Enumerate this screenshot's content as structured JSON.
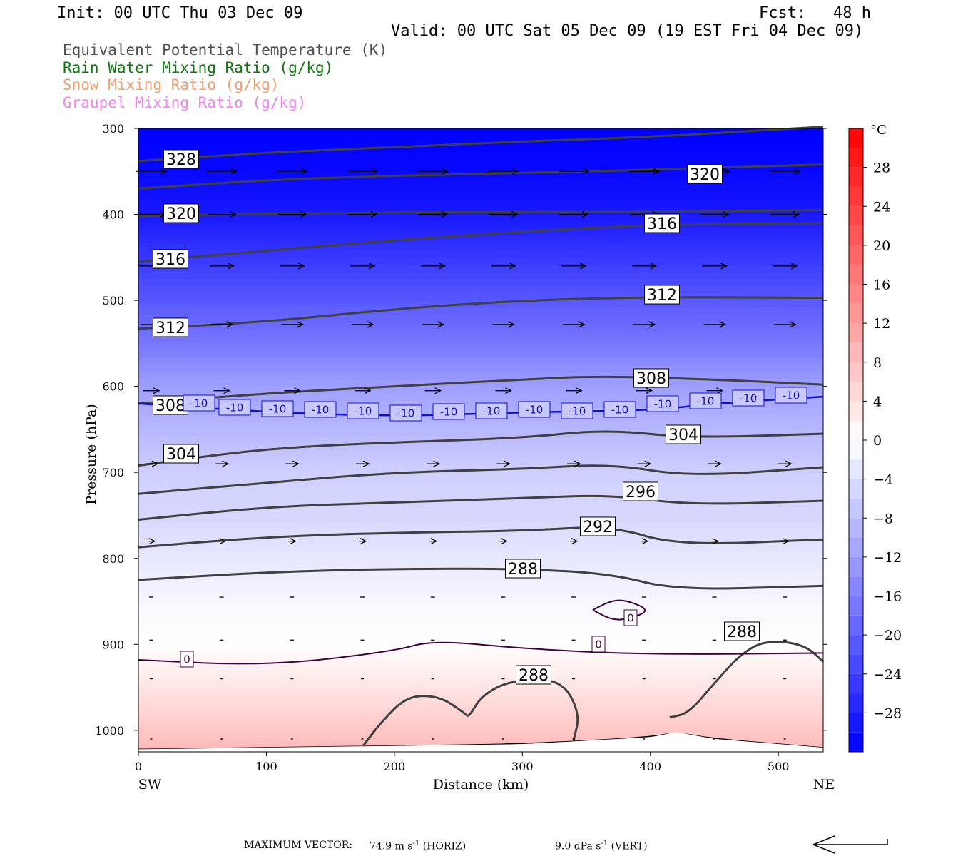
{
  "header": {
    "init": "Init: 00 UTC Thu 03 Dec 09",
    "fcst_label": "Fcst:",
    "fcst_value": "48 h",
    "valid": "Valid: 00 UTC Sat 05 Dec 09 (19 EST Fri 04 Dec 09)"
  },
  "fields": [
    {
      "text": "Equivalent Potential Temperature (K)",
      "color": "#505050"
    },
    {
      "text": "Rain Water Mixing Ratio (g/kg)",
      "color": "#0a7a0a"
    },
    {
      "text": "Snow Mixing Ratio (g/kg)",
      "color": "#f0a070"
    },
    {
      "text": "Graupel Mixing Ratio (g/kg)",
      "color": "#ee82ee"
    }
  ],
  "footer": {
    "max_vector_label": "MAXIMUM VECTOR:",
    "horiz_value": "74.9 m s",
    "horiz_exp": "-1",
    "horiz_tag": "(HORIZ)",
    "vert_value": "9.0 dPa s",
    "vert_exp": "-1",
    "vert_tag": "(VERT)"
  },
  "chart_data": {
    "type": "cross-section",
    "xlabel": "Distance (km)",
    "ylabel": "Pressure (hPa)",
    "xlim": [
      0,
      535
    ],
    "ylim": [
      1025,
      300
    ],
    "y_scale": "linear",
    "x_ticks": [
      0,
      100,
      200,
      300,
      400,
      500
    ],
    "y_ticks": [
      300,
      400,
      500,
      600,
      700,
      800,
      900,
      1000
    ],
    "x_end_labels": {
      "left": "SW",
      "right": "NE"
    },
    "colorbar": {
      "unit": "°C",
      "levels": [
        -32,
        -30,
        -28,
        -26,
        -24,
        -22,
        -20,
        -18,
        -16,
        -14,
        -12,
        -10,
        -8,
        -6,
        -4,
        -2,
        0,
        2,
        4,
        6,
        8,
        10,
        12,
        14,
        16,
        18,
        20,
        22,
        24,
        26,
        28,
        30,
        32
      ],
      "tick_labels": [
        28,
        24,
        20,
        16,
        12,
        8,
        4,
        0,
        -4,
        -8,
        -12,
        -16,
        -20,
        -24,
        -28
      ]
    },
    "temperature_bands": [
      {
        "p": 300,
        "t": -32
      },
      {
        "p": 350,
        "t": -31
      },
      {
        "p": 400,
        "t": -29
      },
      {
        "p": 450,
        "t": -25
      },
      {
        "p": 500,
        "t": -21
      },
      {
        "p": 550,
        "t": -17
      },
      {
        "p": 600,
        "t": -12
      },
      {
        "p": 650,
        "t": -9
      },
      {
        "p": 700,
        "t": -6
      },
      {
        "p": 750,
        "t": -5
      },
      {
        "p": 800,
        "t": -3
      },
      {
        "p": 850,
        "t": -1
      },
      {
        "p": 900,
        "t": 0
      },
      {
        "p": 930,
        "t": 2
      },
      {
        "p": 960,
        "t": 4
      },
      {
        "p": 1000,
        "t": 7
      },
      {
        "p": 1025,
        "t": 9
      }
    ],
    "theta_e_contours": [
      {
        "label": "328",
        "points": [
          [
            0,
            338
          ],
          [
            100,
            328
          ],
          [
            200,
            322
          ],
          [
            300,
            315
          ],
          [
            400,
            310
          ],
          [
            535,
            298
          ]
        ]
      },
      {
        "label": "320",
        "points": [
          [
            0,
            370
          ],
          [
            100,
            360
          ],
          [
            200,
            355
          ],
          [
            300,
            352
          ],
          [
            400,
            348
          ],
          [
            535,
            342
          ]
        ]
      },
      {
        "label": "320",
        "points": [
          [
            0,
            402
          ],
          [
            100,
            399
          ],
          [
            200,
            398
          ],
          [
            300,
            397
          ],
          [
            400,
            397
          ],
          [
            535,
            395
          ]
        ]
      },
      {
        "label": "316",
        "points": [
          [
            0,
            455
          ],
          [
            100,
            442
          ],
          [
            200,
            430
          ],
          [
            300,
            420
          ],
          [
            400,
            412
          ],
          [
            535,
            410
          ]
        ]
      },
      {
        "label": "312",
        "points": [
          [
            0,
            533
          ],
          [
            100,
            525
          ],
          [
            200,
            510
          ],
          [
            300,
            500
          ],
          [
            400,
            496
          ],
          [
            535,
            497
          ]
        ]
      },
      {
        "label": "308",
        "points": [
          [
            0,
            620
          ],
          [
            100,
            608
          ],
          [
            200,
            600
          ],
          [
            300,
            592
          ],
          [
            360,
            588
          ],
          [
            450,
            592
          ],
          [
            535,
            598
          ]
        ]
      },
      {
        "label": "304",
        "points": [
          [
            0,
            692
          ],
          [
            100,
            672
          ],
          [
            200,
            665
          ],
          [
            300,
            660
          ],
          [
            365,
            650
          ],
          [
            430,
            660
          ],
          [
            535,
            655
          ]
        ]
      },
      {
        "label": "",
        "points": [
          [
            0,
            725
          ],
          [
            100,
            712
          ],
          [
            200,
            700
          ],
          [
            300,
            696
          ],
          [
            370,
            690
          ],
          [
            430,
            705
          ],
          [
            535,
            694
          ]
        ]
      },
      {
        "label": "296",
        "points": [
          [
            0,
            755
          ],
          [
            100,
            740
          ],
          [
            200,
            735
          ],
          [
            300,
            730
          ],
          [
            370,
            726
          ],
          [
            430,
            738
          ],
          [
            535,
            733
          ]
        ]
      },
      {
        "label": "292",
        "points": [
          [
            0,
            787
          ],
          [
            100,
            775
          ],
          [
            200,
            770
          ],
          [
            300,
            768
          ],
          [
            370,
            762
          ],
          [
            420,
            785
          ],
          [
            535,
            778
          ]
        ]
      },
      {
        "label": "288",
        "points": [
          [
            0,
            825
          ],
          [
            100,
            816
          ],
          [
            200,
            812
          ],
          [
            300,
            812
          ],
          [
            370,
            818
          ],
          [
            420,
            837
          ],
          [
            535,
            832
          ]
        ]
      }
    ],
    "theta_e_288_low": [
      {
        "label": "288",
        "points": [
          [
            176,
            1017
          ],
          [
            190,
            990
          ],
          [
            210,
            960
          ],
          [
            235,
            960
          ],
          [
            255,
            980
          ],
          [
            258,
            985
          ],
          [
            268,
            960
          ],
          [
            290,
            942
          ],
          [
            330,
            940
          ],
          [
            345,
            980
          ],
          [
            340,
            1012
          ]
        ]
      },
      {
        "label": "288",
        "points": [
          [
            415,
            985
          ],
          [
            430,
            980
          ],
          [
            450,
            945
          ],
          [
            470,
            912
          ],
          [
            490,
            895
          ],
          [
            520,
            900
          ],
          [
            535,
            920
          ]
        ]
      }
    ],
    "isotherm_minus10": {
      "label": "-10",
      "points": [
        [
          0,
          620
        ],
        [
          100,
          630
        ],
        [
          200,
          635
        ],
        [
          300,
          630
        ],
        [
          400,
          628
        ],
        [
          450,
          620
        ],
        [
          535,
          612
        ]
      ]
    },
    "isotherm_zero": {
      "label": "0",
      "points": [
        [
          0,
          918
        ],
        [
          100,
          925
        ],
        [
          200,
          908
        ],
        [
          230,
          895
        ],
        [
          300,
          905
        ],
        [
          400,
          912
        ],
        [
          535,
          910
        ]
      ],
      "closed_loop": [
        [
          355,
          860
        ],
        [
          368,
          850
        ],
        [
          380,
          848
        ],
        [
          400,
          860
        ],
        [
          385,
          870
        ],
        [
          370,
          872
        ],
        [
          355,
          860
        ]
      ]
    },
    "surface": {
      "points": [
        [
          0,
          1022
        ],
        [
          100,
          1020
        ],
        [
          200,
          1018
        ],
        [
          300,
          1016
        ],
        [
          400,
          1008
        ],
        [
          420,
          1002
        ],
        [
          450,
          1010
        ],
        [
          535,
          1020
        ]
      ]
    },
    "wind_rows": [
      {
        "p": 350,
        "len": 42
      },
      {
        "p": 400,
        "len": 40
      },
      {
        "p": 460,
        "len": 34
      },
      {
        "p": 528,
        "len": 30
      },
      {
        "p": 605,
        "len": 22
      },
      {
        "p": 690,
        "len": 18
      },
      {
        "p": 780,
        "len": 10
      },
      {
        "p": 845,
        "len": 6
      },
      {
        "p": 895,
        "len": 5
      },
      {
        "p": 940,
        "len": 4
      },
      {
        "p": 1010,
        "len": 3
      }
    ]
  }
}
